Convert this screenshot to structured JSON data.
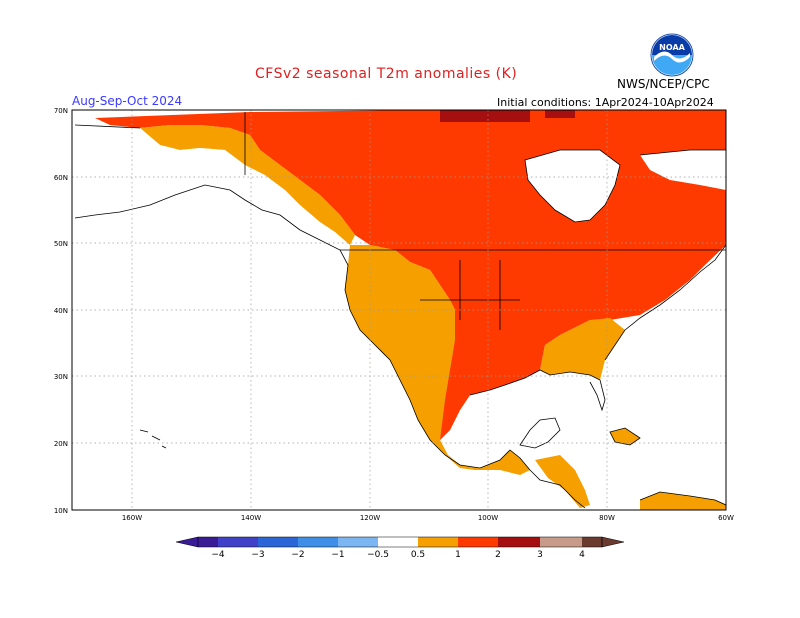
{
  "header": {
    "title": "CFSv2 seasonal T2m anomalies (K)",
    "period": "Aug-Sep-Oct 2024",
    "initial_conditions": "Initial conditions: 1Apr2024-10Apr2024",
    "agency": "NWS/NCEP/CPC",
    "logo_text": "NOAA"
  },
  "map": {
    "lat_labels": [
      "70N",
      "60N",
      "50N",
      "40N",
      "30N",
      "20N",
      "10N"
    ],
    "lon_labels": [
      "160W",
      "140W",
      "120W",
      "100W",
      "80W",
      "60W"
    ],
    "land_outline_color": "#000000",
    "grid_color": "#9a9a9a"
  },
  "colorbar": {
    "bins": [
      {
        "color": "#3a1c96"
      },
      {
        "color": "#4040c8"
      },
      {
        "color": "#2a66d8"
      },
      {
        "color": "#3f8fe8"
      },
      {
        "color": "#7bb6f2"
      },
      {
        "color": "#ffffff"
      },
      {
        "color": "#f5a000"
      },
      {
        "color": "#ff6a10"
      },
      {
        "color": "#ff3a00"
      },
      {
        "color": "#a50f0f"
      },
      {
        "color": "#c79a8a"
      },
      {
        "color": "#6b3b30"
      }
    ],
    "labels": [
      "−4",
      "−3",
      "−2",
      "−1",
      "−0.5",
      "0.5",
      "1",
      "2",
      "3",
      "4"
    ]
  },
  "legend_palette": {
    "orange": "#f5a000",
    "red_orange": "#ff3a00",
    "dark_red": "#a50f0f"
  }
}
